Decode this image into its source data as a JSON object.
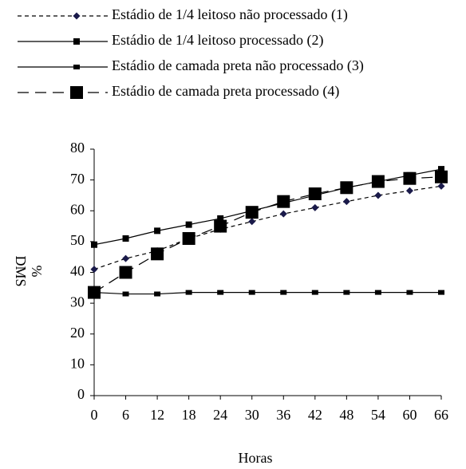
{
  "chart_data": {
    "type": "line",
    "xlabel": "Horas",
    "ylabel": "DMS",
    "yunit": "%",
    "x": [
      0,
      6,
      12,
      18,
      24,
      30,
      36,
      42,
      48,
      54,
      60,
      66
    ],
    "xlim": [
      0,
      66
    ],
    "xticks": [
      0,
      6,
      12,
      18,
      24,
      30,
      36,
      42,
      48,
      54,
      60,
      66
    ],
    "ylim": [
      0,
      80
    ],
    "yticks": [
      0,
      10,
      20,
      30,
      40,
      50,
      60,
      70,
      80
    ],
    "legend": "top",
    "series": [
      {
        "name": "Estádio de 1/4 leitoso não processado (1)",
        "color": "#000000",
        "marker_color": "#1a1a4a",
        "line_style": "dashed",
        "marker": "diamond",
        "values": [
          41,
          44.5,
          47,
          51,
          54,
          56.5,
          59,
          61,
          63,
          65,
          66.5,
          68
        ]
      },
      {
        "name": "Estádio de 1/4 leitoso processado (2)",
        "color": "#000000",
        "marker_color": "#000000",
        "line_style": "solid",
        "marker": "square",
        "values": [
          49,
          51,
          53.5,
          55.5,
          57.5,
          60,
          62.5,
          65,
          67.5,
          69.5,
          71.5,
          73.5
        ]
      },
      {
        "name": "Estádio de camada preta não processado (3)",
        "color": "#000000",
        "marker_color": "#000000",
        "line_style": "solid",
        "marker": "dash",
        "values": [
          33.5,
          33,
          33,
          33.5,
          33.5,
          33.5,
          33.5,
          33.5,
          33.5,
          33.5,
          33.5,
          33.5
        ]
      },
      {
        "name": "Estádio de camada preta processado (4)",
        "color": "#000000",
        "marker_color": "#000000",
        "line_style": "long-dashed",
        "marker": "large-square",
        "values": [
          33.5,
          40,
          46,
          51,
          55,
          59.5,
          63,
          65.5,
          67.5,
          69.5,
          70.5,
          71
        ]
      }
    ]
  }
}
